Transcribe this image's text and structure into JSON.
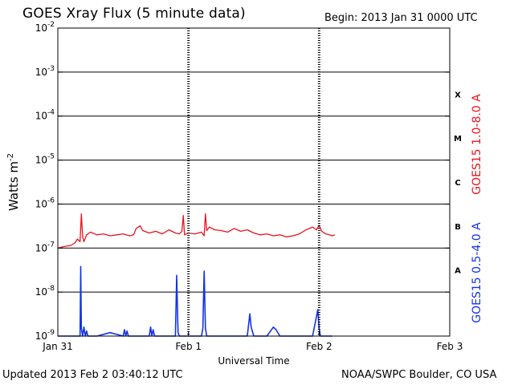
{
  "header": {
    "title": "GOES Xray Flux (5 minute data)",
    "begin": "Begin:  2013 Jan 31 0000 UTC"
  },
  "footer": {
    "updated": "Updated 2013 Feb  2 03:40:12 UTC",
    "credit": "NOAA/SWPC Boulder, CO USA"
  },
  "colors": {
    "long_channel": "#e8141e",
    "short_channel": "#1432e6",
    "axes": "#000000"
  },
  "chart_data": {
    "type": "line",
    "title": "GOES Xray Flux (5 minute data)",
    "xlabel": "Universal Time",
    "ylabel_base": "Watts m",
    "ylabel_exp": "-2",
    "yscale": "log",
    "ylim": [
      1e-09,
      0.01
    ],
    "xlim": [
      0,
      3
    ],
    "x_unit": "days since 2013 Jan 31 0000 UTC",
    "grid": true,
    "x_ticks": [
      {
        "x": 0,
        "label": "Jan 31"
      },
      {
        "x": 1,
        "label": "Feb 1"
      },
      {
        "x": 2,
        "label": "Feb 2"
      },
      {
        "x": 3,
        "label": "Feb 3"
      }
    ],
    "y_ticks": [
      {
        "exp": -9,
        "base": "10",
        "sup": "-9"
      },
      {
        "exp": -8,
        "base": "10",
        "sup": "-8"
      },
      {
        "exp": -7,
        "base": "10",
        "sup": "-7"
      },
      {
        "exp": -6,
        "base": "10",
        "sup": "-6"
      },
      {
        "exp": -5,
        "base": "10",
        "sup": "-5"
      },
      {
        "exp": -4,
        "base": "10",
        "sup": "-4"
      },
      {
        "exp": -3,
        "base": "10",
        "sup": "-3"
      },
      {
        "exp": -2,
        "base": "10",
        "sup": "-2"
      }
    ],
    "flare_classes": [
      {
        "label": "A",
        "exp": -8
      },
      {
        "label": "B",
        "exp": -7
      },
      {
        "label": "C",
        "exp": -6
      },
      {
        "label": "M",
        "exp": -5
      },
      {
        "label": "X",
        "exp": -4
      }
    ],
    "series": [
      {
        "name": "GOES15 1.0-8.0 A",
        "color": "#e8141e",
        "x": [
          0.0,
          0.06,
          0.1,
          0.13,
          0.15,
          0.17,
          0.18,
          0.19,
          0.2,
          0.22,
          0.25,
          0.3,
          0.35,
          0.4,
          0.45,
          0.5,
          0.55,
          0.58,
          0.6,
          0.63,
          0.65,
          0.7,
          0.75,
          0.8,
          0.85,
          0.9,
          0.93,
          0.95,
          0.96,
          0.97,
          1.0,
          1.05,
          1.1,
          1.12,
          1.13,
          1.14,
          1.16,
          1.2,
          1.25,
          1.3,
          1.35,
          1.4,
          1.45,
          1.5,
          1.55,
          1.6,
          1.65,
          1.7,
          1.75,
          1.8,
          1.85,
          1.9,
          1.95,
          1.98,
          2.0,
          2.02,
          2.05,
          2.08,
          2.1,
          2.12
        ],
        "y": [
          1e-07,
          1.1e-07,
          1.15e-07,
          1.3e-07,
          1.6e-07,
          1.4e-07,
          6e-07,
          1.8e-07,
          1.4e-07,
          2e-07,
          2.3e-07,
          2e-07,
          2.1e-07,
          1.9e-07,
          2e-07,
          2.1e-07,
          1.9e-07,
          2e-07,
          2.8e-07,
          3.2e-07,
          2.5e-07,
          2.2e-07,
          2.4e-07,
          2.1e-07,
          2.6e-07,
          2.2e-07,
          2.1e-07,
          2.4e-07,
          5.5e-07,
          2e-07,
          2.2e-07,
          2.1e-07,
          2.3e-07,
          1.9e-07,
          6e-07,
          2.5e-07,
          3e-07,
          2.6e-07,
          2.5e-07,
          2.3e-07,
          2.8e-07,
          2.4e-07,
          2.6e-07,
          2.2e-07,
          2e-07,
          2.1e-07,
          1.9e-07,
          2e-07,
          1.8e-07,
          1.9e-07,
          2.1e-07,
          2.6e-07,
          3e-07,
          2.6e-07,
          3.3e-07,
          2.4e-07,
          2.1e-07,
          2e-07,
          1.9e-07,
          2e-07
        ]
      },
      {
        "name": "GOES15 0.5-4.0 A",
        "color": "#1432e6",
        "x": [
          0.0,
          0.17,
          0.175,
          0.18,
          0.19,
          0.2,
          0.21,
          0.22,
          0.23,
          0.3,
          0.4,
          0.5,
          0.51,
          0.52,
          0.53,
          0.54,
          0.7,
          0.71,
          0.72,
          0.73,
          0.74,
          0.75,
          0.9,
          0.91,
          0.92,
          0.93,
          1.0,
          1.1,
          1.11,
          1.12,
          1.13,
          1.14,
          1.4,
          1.45,
          1.46,
          1.47,
          1.48,
          1.5,
          1.6,
          1.65,
          1.67,
          1.7,
          1.8,
          1.95,
          1.97,
          1.99,
          2.0,
          2.01,
          2.03,
          2.1
        ],
        "y": [
          1e-09,
          1e-09,
          3.8e-08,
          1.5e-09,
          1e-09,
          1.6e-09,
          1e-09,
          1.3e-09,
          1e-09,
          1e-09,
          1.2e-09,
          1e-09,
          1.4e-09,
          1e-09,
          1.3e-09,
          1e-09,
          1e-09,
          1.6e-09,
          1e-09,
          1.4e-09,
          1e-09,
          1e-09,
          1e-09,
          2.4e-08,
          1.2e-09,
          1e-09,
          1e-09,
          1e-09,
          1.5e-09,
          3e-08,
          1.5e-09,
          1e-09,
          1e-09,
          1e-09,
          1.8e-09,
          3.2e-09,
          1.6e-09,
          1e-09,
          1e-09,
          1.6e-09,
          1.4e-09,
          1e-09,
          1e-09,
          1e-09,
          2e-09,
          4e-09,
          1.5e-09,
          1e-09,
          1e-09,
          1e-09
        ]
      }
    ],
    "markers": [
      1,
      2
    ]
  }
}
